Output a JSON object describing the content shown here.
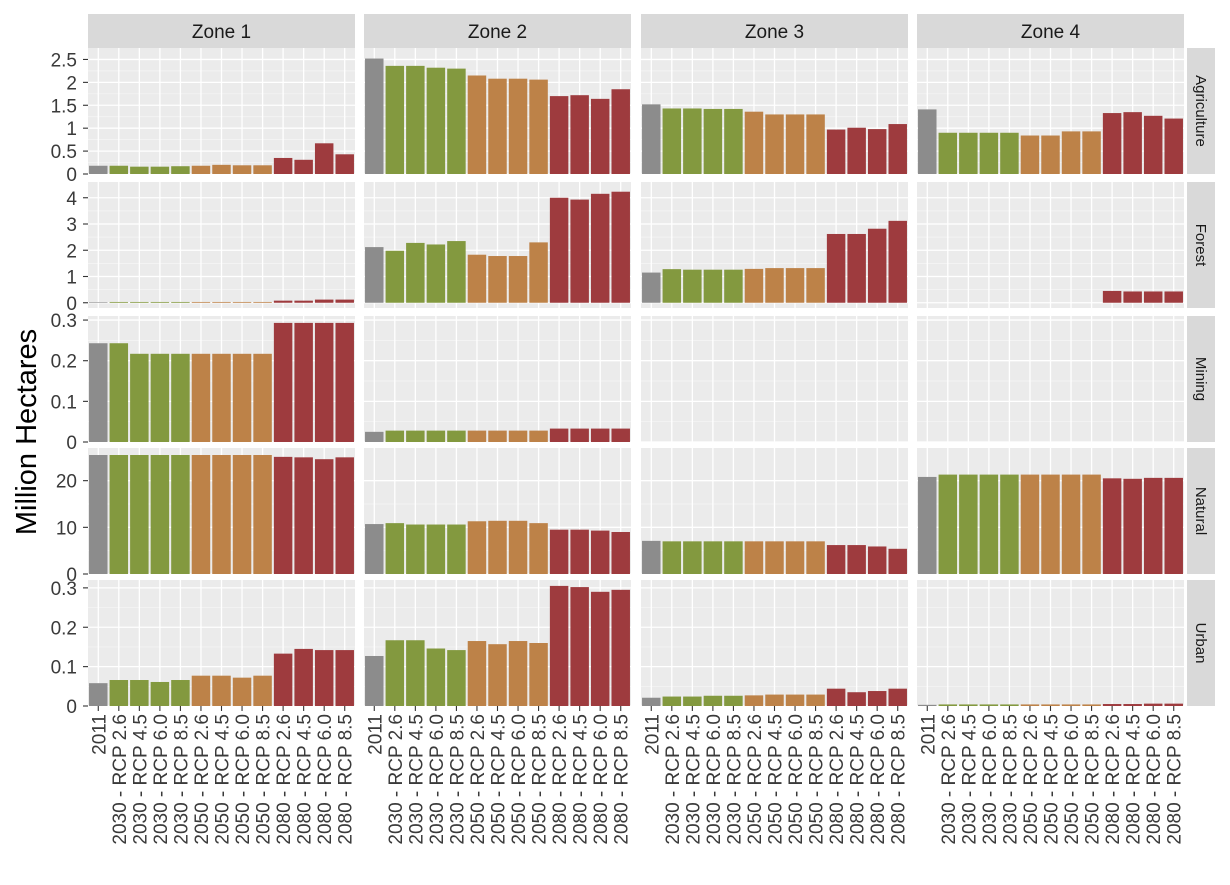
{
  "chart_data": {
    "type": "bar",
    "ylabel": "Million Hectares",
    "xlabel": "",
    "legend": "none",
    "grid": true,
    "columns": [
      "Zone 1",
      "Zone 2",
      "Zone 3",
      "Zone 4"
    ],
    "rows": [
      {
        "name": "Agriculture",
        "ylim": [
          0,
          2.75
        ],
        "ticks": [
          0,
          0.5,
          1,
          1.5,
          2,
          2.5
        ],
        "tick_labels": [
          "0",
          "0.5",
          "1",
          "1.5",
          "2",
          "2.5"
        ]
      },
      {
        "name": "Forest",
        "ylim": [
          -0.2,
          4.6
        ],
        "ticks": [
          0,
          1,
          2,
          3,
          4
        ],
        "tick_labels": [
          "0",
          "1",
          "2",
          "3",
          "4"
        ]
      },
      {
        "name": "Mining",
        "ylim": [
          0,
          0.31
        ],
        "ticks": [
          0,
          0.1,
          0.2,
          0.3
        ],
        "tick_labels": [
          "0",
          "0.1",
          "0.2",
          "0.3"
        ]
      },
      {
        "name": "Natural",
        "ylim": [
          0,
          27
        ],
        "ticks": [
          0,
          10,
          20
        ],
        "tick_labels": [
          "0",
          "10",
          "20"
        ]
      },
      {
        "name": "Urban",
        "ylim": [
          0,
          0.32
        ],
        "ticks": [
          0,
          0.1,
          0.2,
          0.3
        ],
        "tick_labels": [
          "0",
          "0.1",
          "0.2",
          "0.3"
        ]
      }
    ],
    "categories": [
      "2011",
      "2030 - RCP 2.6",
      "2030 - RCP 4.5",
      "2030 - RCP 6.0",
      "2030 - RCP 8.5",
      "2050 - RCP 2.6",
      "2050 - RCP 4.5",
      "2050 - RCP 6.0",
      "2050 - RCP 8.5",
      "2080 - RCP 2.6",
      "2080 - RCP 4.5",
      "2080 - RCP 6.0",
      "2080 - RCP 8.5"
    ],
    "category_groups": [
      "2011",
      "2030",
      "2030",
      "2030",
      "2030",
      "2050",
      "2050",
      "2050",
      "2050",
      "2080",
      "2080",
      "2080",
      "2080"
    ],
    "colors": {
      "2011": "#8c8c8c",
      "2030": "#83993f",
      "2050": "#bd8248",
      "2080": "#9e3b3e"
    },
    "values": {
      "Agriculture": [
        [
          0.18,
          0.18,
          0.16,
          0.16,
          0.17,
          0.18,
          0.2,
          0.19,
          0.19,
          0.35,
          0.31,
          0.67,
          0.43
        ],
        [
          2.52,
          2.36,
          2.36,
          2.32,
          2.3,
          2.15,
          2.08,
          2.08,
          2.06,
          1.7,
          1.72,
          1.64,
          1.85
        ],
        [
          1.52,
          1.43,
          1.43,
          1.42,
          1.42,
          1.36,
          1.3,
          1.3,
          1.3,
          0.97,
          1.01,
          0.98,
          1.09
        ],
        [
          1.41,
          0.9,
          0.9,
          0.9,
          0.9,
          0.84,
          0.84,
          0.93,
          0.93,
          1.33,
          1.35,
          1.27,
          1.21
        ]
      ],
      "Forest": [
        [
          0.02,
          0.03,
          0.03,
          0.03,
          0.03,
          0.03,
          0.03,
          0.03,
          0.03,
          0.08,
          0.08,
          0.12,
          0.12
        ],
        [
          2.12,
          1.98,
          2.28,
          2.22,
          2.35,
          1.83,
          1.78,
          1.78,
          2.3,
          4.0,
          3.93,
          4.15,
          4.23
        ],
        [
          1.15,
          1.28,
          1.26,
          1.26,
          1.26,
          1.29,
          1.32,
          1.32,
          1.32,
          2.62,
          2.62,
          2.82,
          3.12
        ],
        [
          0,
          0,
          0,
          0,
          0,
          0,
          0,
          0,
          0,
          0.45,
          0.43,
          0.43,
          0.43
        ]
      ],
      "Mining": [
        [
          0.243,
          0.243,
          0.217,
          0.217,
          0.217,
          0.217,
          0.217,
          0.217,
          0.217,
          0.293,
          0.293,
          0.293,
          0.293
        ],
        [
          0.025,
          0.028,
          0.028,
          0.028,
          0.028,
          0.028,
          0.028,
          0.028,
          0.028,
          0.033,
          0.033,
          0.033,
          0.033
        ],
        [
          0,
          0,
          0,
          0,
          0,
          0,
          0,
          0,
          0,
          0,
          0,
          0,
          0
        ],
        [
          0,
          0,
          0,
          0,
          0,
          0,
          0,
          0,
          0,
          0,
          0,
          0,
          0
        ]
      ],
      "Natural": [
        [
          25.5,
          25.5,
          25.5,
          25.5,
          25.5,
          25.5,
          25.5,
          25.5,
          25.5,
          25.1,
          25.0,
          24.6,
          25.0
        ],
        [
          10.7,
          10.9,
          10.6,
          10.6,
          10.6,
          11.3,
          11.4,
          11.4,
          10.9,
          9.5,
          9.5,
          9.3,
          9.0
        ],
        [
          7.1,
          7.0,
          7.0,
          7.0,
          7.0,
          7.0,
          7.0,
          7.0,
          7.0,
          6.2,
          6.2,
          5.9,
          5.4
        ],
        [
          20.8,
          21.3,
          21.3,
          21.3,
          21.3,
          21.3,
          21.3,
          21.3,
          21.3,
          20.5,
          20.4,
          20.6,
          20.6
        ]
      ],
      "Urban": [
        [
          0.058,
          0.066,
          0.066,
          0.061,
          0.066,
          0.077,
          0.077,
          0.072,
          0.077,
          0.133,
          0.145,
          0.142,
          0.142
        ],
        [
          0.127,
          0.167,
          0.167,
          0.146,
          0.142,
          0.165,
          0.157,
          0.165,
          0.16,
          0.305,
          0.302,
          0.29,
          0.295
        ],
        [
          0.021,
          0.024,
          0.024,
          0.026,
          0.026,
          0.027,
          0.029,
          0.029,
          0.029,
          0.044,
          0.035,
          0.038,
          0.044
        ],
        [
          0.003,
          0.004,
          0.004,
          0.004,
          0.004,
          0.004,
          0.004,
          0.004,
          0.004,
          0.005,
          0.005,
          0.006,
          0.006
        ]
      ]
    }
  }
}
